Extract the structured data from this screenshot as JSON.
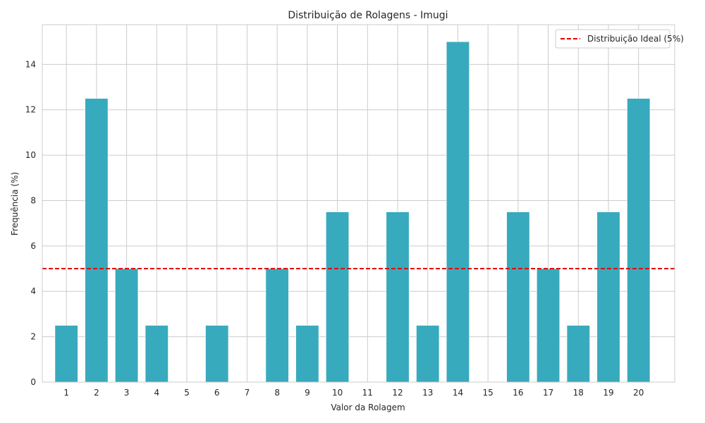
{
  "chart_data": {
    "type": "bar",
    "title": "Distribuição de Rolagens - Imugi",
    "xlabel": "Valor da Rolagem",
    "ylabel": "Frequência (%)",
    "categories": [
      "1",
      "2",
      "3",
      "4",
      "5",
      "6",
      "7",
      "8",
      "9",
      "10",
      "11",
      "12",
      "13",
      "14",
      "15",
      "16",
      "17",
      "18",
      "19",
      "20"
    ],
    "values": [
      2.5,
      12.5,
      5,
      2.5,
      0,
      2.5,
      0,
      5,
      2.5,
      7.5,
      0,
      7.5,
      2.5,
      15,
      0,
      7.5,
      5,
      2.5,
      7.5,
      12.5
    ],
    "ylim": [
      0,
      15.75
    ],
    "yticks": [
      0,
      2,
      4,
      6,
      8,
      10,
      12,
      14
    ],
    "xlim": [
      0.2,
      21.2
    ],
    "grid": true,
    "bar_color": "#38aabd",
    "reference_line": {
      "value": 5,
      "label": "Distribuição Ideal (5%)",
      "color": "#e60000",
      "style": "dashed"
    },
    "legend_position": "top-right"
  }
}
